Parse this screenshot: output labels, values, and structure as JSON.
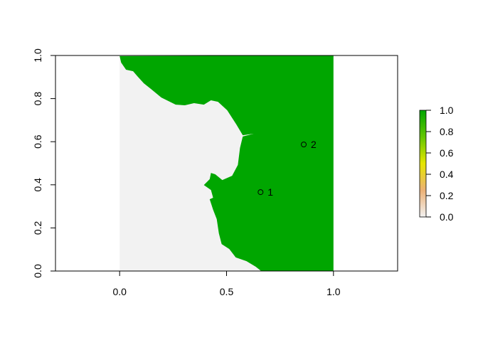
{
  "chart_data": {
    "type": "heatmap",
    "title": "",
    "xlabel": "",
    "ylabel": "",
    "xlim": [
      -0.3,
      1.3
    ],
    "ylim": [
      0,
      1
    ],
    "x_ticks": [
      "0.0",
      "0.5",
      "1.0"
    ],
    "x_tick_values": [
      0,
      0.5,
      1
    ],
    "y_ticks": [
      "0.0",
      "0.2",
      "0.4",
      "0.6",
      "0.8",
      "1.0"
    ],
    "y_tick_values": [
      0,
      0.2,
      0.4,
      0.6,
      0.8,
      1.0
    ],
    "raster_extent": {
      "xmin": 0,
      "xmax": 1,
      "ymin": 0,
      "ymax": 1
    },
    "background_value": 0,
    "region_value": 1,
    "region_boundary": [
      [
        0,
        0.997
      ],
      [
        0.007,
        0.967
      ],
      [
        0.03,
        0.934
      ],
      [
        0.063,
        0.927
      ],
      [
        0.083,
        0.904
      ],
      [
        0.113,
        0.871
      ],
      [
        0.146,
        0.845
      ],
      [
        0.195,
        0.805
      ],
      [
        0.262,
        0.772
      ],
      [
        0.305,
        0.769
      ],
      [
        0.348,
        0.779
      ],
      [
        0.394,
        0.772
      ],
      [
        0.427,
        0.792
      ],
      [
        0.46,
        0.785
      ],
      [
        0.503,
        0.746
      ],
      [
        0.546,
        0.68
      ],
      [
        0.576,
        0.63
      ],
      [
        0.626,
        0.637
      ],
      [
        0.576,
        0.624
      ],
      [
        0.563,
        0.571
      ],
      [
        0.553,
        0.492
      ],
      [
        0.526,
        0.442
      ],
      [
        0.48,
        0.422
      ],
      [
        0.447,
        0.449
      ],
      [
        0.427,
        0.455
      ],
      [
        0.421,
        0.426
      ],
      [
        0.394,
        0.399
      ],
      [
        0.427,
        0.376
      ],
      [
        0.437,
        0.34
      ],
      [
        0.421,
        0.333
      ],
      [
        0.437,
        0.284
      ],
      [
        0.454,
        0.241
      ],
      [
        0.464,
        0.175
      ],
      [
        0.477,
        0.125
      ],
      [
        0.513,
        0.102
      ],
      [
        0.543,
        0.063
      ],
      [
        0.593,
        0.046
      ],
      [
        0.636,
        0.02
      ],
      [
        0.662,
        0
      ],
      [
        1,
        0
      ],
      [
        1,
        1
      ]
    ],
    "points": [
      {
        "label": "1",
        "x": 0.659,
        "y": 0.366
      },
      {
        "label": "2",
        "x": 0.861,
        "y": 0.587
      }
    ],
    "legend": {
      "placement": "right",
      "range": [
        0,
        1
      ],
      "ticks": [
        "0.0",
        "0.2",
        "0.4",
        "0.6",
        "0.8",
        "1.0"
      ],
      "tick_values": [
        0,
        0.2,
        0.4,
        0.6,
        0.8,
        1.0
      ],
      "colors": [
        "#f2f2f2",
        "#ecb176",
        "#e6e600",
        "#63c600",
        "#00a600"
      ]
    },
    "colors": {
      "low": "#f2f2f2",
      "high": "#00a600"
    }
  }
}
